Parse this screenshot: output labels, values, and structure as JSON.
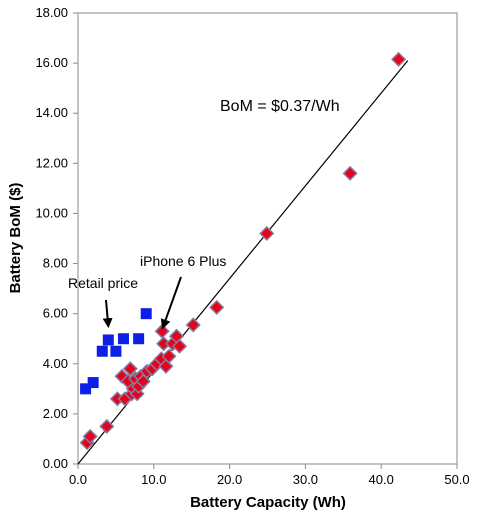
{
  "chart_data": {
    "type": "scatter",
    "xlabel": "Battery Capacity (Wh)",
    "ylabel": "Battery BoM  ($)",
    "xlim": [
      0,
      50
    ],
    "ylim": [
      0,
      18
    ],
    "x_ticks": [
      "0.0",
      "10.0",
      "20.0",
      "30.0",
      "40.0",
      "50.0"
    ],
    "y_ticks": [
      "0.00",
      "2.00",
      "4.00",
      "6.00",
      "8.00",
      "10.00",
      "12.00",
      "14.00",
      "16.00",
      "18.00"
    ],
    "grid": false,
    "trendline": {
      "label": "BoM = $0.37/Wh",
      "x": [
        0,
        43.5
      ],
      "y": [
        0,
        16.1
      ]
    },
    "series": [
      {
        "marker": "diamond",
        "color": "#e8001c",
        "edge_color": "#7f7f9f",
        "x": [
          1.2,
          1.6,
          3.8,
          5.2,
          5.8,
          6.2,
          6.6,
          6.9,
          7.1,
          7.3,
          7.6,
          7.8,
          8.0,
          8.3,
          8.6,
          9.1,
          9.8,
          10.4,
          11.0,
          11.1,
          11.3,
          11.6,
          12.0,
          12.5,
          13.0,
          13.4,
          15.2,
          18.3,
          24.9,
          35.9,
          42.3
        ],
        "y": [
          0.85,
          1.1,
          1.5,
          2.6,
          3.5,
          2.6,
          3.3,
          3.8,
          2.8,
          3.0,
          3.4,
          2.8,
          3.1,
          3.5,
          3.3,
          3.7,
          3.8,
          4.0,
          4.2,
          5.3,
          4.8,
          3.9,
          4.3,
          4.8,
          5.1,
          4.7,
          5.55,
          6.25,
          9.2,
          11.6,
          16.15
        ]
      },
      {
        "name": "Retail price",
        "marker": "square",
        "color": "#0d1fe6",
        "x": [
          1.0,
          2.0,
          3.2,
          4.0,
          5.0,
          6.0,
          8.0,
          9.0
        ],
        "y": [
          3.0,
          3.25,
          4.5,
          4.95,
          4.5,
          5.0,
          5.0,
          6.0
        ]
      }
    ],
    "annotations": [
      {
        "text": "Retail price",
        "arrow_to": [
          4.0,
          5.5
        ]
      },
      {
        "text": "iPhone 6 Plus",
        "arrow_to": [
          11.2,
          5.45
        ]
      }
    ]
  }
}
